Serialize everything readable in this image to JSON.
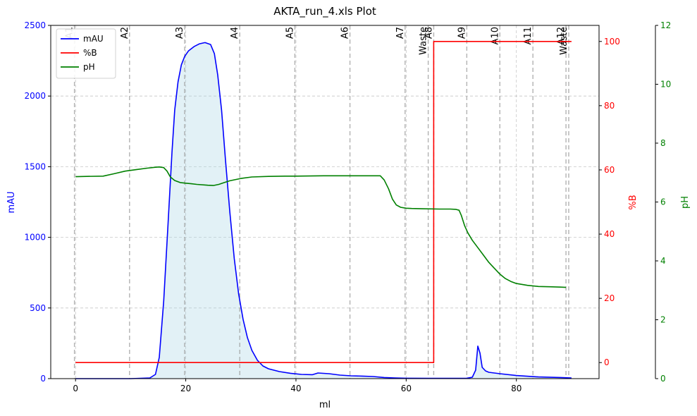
{
  "chart_data": {
    "type": "line",
    "title": "AKTA_run_4.xls Plot",
    "xlabel": "ml",
    "xlim": [
      -4.5,
      95
    ],
    "x_ticks": [
      0,
      20,
      40,
      60,
      80
    ],
    "grid": true,
    "legend_position": "upper-left",
    "axes": {
      "mAU": {
        "label": "mAU",
        "side": "left",
        "color": "#0000ff",
        "ylim": [
          0,
          2500
        ],
        "ticks": [
          0,
          500,
          1000,
          1500,
          2000,
          2500
        ]
      },
      "percentB": {
        "label": "%B",
        "side": "right",
        "color": "#ff0000",
        "ylim": [
          -5,
          105
        ],
        "ticks": [
          0,
          20,
          40,
          60,
          80,
          100
        ]
      },
      "pH": {
        "label": "pH",
        "side": "right-outer",
        "color": "#008000",
        "ylim": [
          0,
          12
        ],
        "ticks": [
          0,
          2,
          4,
          6,
          8,
          10,
          12
        ]
      }
    },
    "series": [
      {
        "name": "mAU",
        "axis": "mAU",
        "color": "#0000ff",
        "fill_color": "#add8e6",
        "x": [
          0,
          10,
          13.5,
          14.5,
          15.2,
          16,
          16.8,
          17.5,
          18,
          18.6,
          19.2,
          19.8,
          20.5,
          21.5,
          22.5,
          23.5,
          24.5,
          25.2,
          25.8,
          26.5,
          27.2,
          28,
          28.8,
          29.6,
          30.4,
          31.2,
          32,
          33,
          34,
          35,
          37,
          39,
          41,
          43,
          44,
          46,
          48,
          50,
          52,
          54,
          56,
          58,
          60,
          64,
          68,
          70,
          71,
          72,
          72.6,
          73.0,
          73.4,
          73.8,
          74.4,
          75,
          77,
          80,
          84,
          88,
          90
        ],
        "y": [
          0,
          0,
          5,
          30,
          150,
          550,
          1100,
          1600,
          1900,
          2100,
          2220,
          2280,
          2320,
          2350,
          2370,
          2378,
          2365,
          2300,
          2150,
          1900,
          1550,
          1180,
          850,
          600,
          420,
          290,
          200,
          130,
          90,
          70,
          50,
          38,
          30,
          28,
          40,
          35,
          25,
          20,
          18,
          15,
          8,
          5,
          3,
          2,
          2,
          2,
          3,
          10,
          60,
          230,
          180,
          80,
          55,
          45,
          35,
          22,
          12,
          8,
          5
        ]
      },
      {
        "name": "%B",
        "axis": "percentB",
        "color": "#ff0000",
        "x": [
          0,
          65,
          65,
          90
        ],
        "y": [
          0,
          0,
          100,
          100
        ]
      },
      {
        "name": "pH",
        "axis": "pH",
        "color": "#008000",
        "x": [
          0,
          2,
          5,
          7,
          9,
          11,
          13,
          14.5,
          15.2,
          16,
          16.6,
          17.2,
          18,
          19,
          20,
          21,
          22,
          24,
          25,
          26,
          27,
          28,
          30,
          32,
          35,
          38,
          40,
          45,
          50,
          54,
          55.3,
          56,
          56.8,
          57.5,
          58.2,
          59,
          60,
          61,
          63,
          66,
          68,
          69,
          69.6,
          70,
          70.6,
          71.2,
          72,
          73,
          74,
          75,
          76,
          77,
          78,
          79,
          80,
          82,
          84,
          86,
          88,
          89
        ],
        "y": [
          6.86,
          6.87,
          6.88,
          6.96,
          7.05,
          7.1,
          7.15,
          7.18,
          7.19,
          7.17,
          7.05,
          6.85,
          6.73,
          6.66,
          6.64,
          6.62,
          6.6,
          6.57,
          6.56,
          6.6,
          6.66,
          6.72,
          6.8,
          6.85,
          6.87,
          6.88,
          6.88,
          6.89,
          6.89,
          6.89,
          6.89,
          6.75,
          6.45,
          6.1,
          5.9,
          5.82,
          5.79,
          5.78,
          5.77,
          5.76,
          5.76,
          5.75,
          5.72,
          5.55,
          5.2,
          4.95,
          4.7,
          4.45,
          4.2,
          3.95,
          3.75,
          3.55,
          3.4,
          3.3,
          3.23,
          3.17,
          3.13,
          3.12,
          3.11,
          3.1
        ]
      }
    ],
    "fractions": [
      {
        "label": "A1",
        "x": -0.2
      },
      {
        "label": "A2",
        "x": 9.8
      },
      {
        "label": "A3",
        "x": 19.8
      },
      {
        "label": "A4",
        "x": 29.8
      },
      {
        "label": "A5",
        "x": 39.8
      },
      {
        "label": "A6",
        "x": 49.8
      },
      {
        "label": "A7",
        "x": 59.8
      },
      {
        "label": "Waste",
        "x": 64.0
      },
      {
        "label": "A8",
        "x": 65.0
      },
      {
        "label": "A9",
        "x": 71.0
      },
      {
        "label": "A10",
        "x": 77.0
      },
      {
        "label": "A11",
        "x": 83.0
      },
      {
        "label": "A12",
        "x": 89.0
      },
      {
        "label": "Waste",
        "x": 89.5
      }
    ]
  }
}
